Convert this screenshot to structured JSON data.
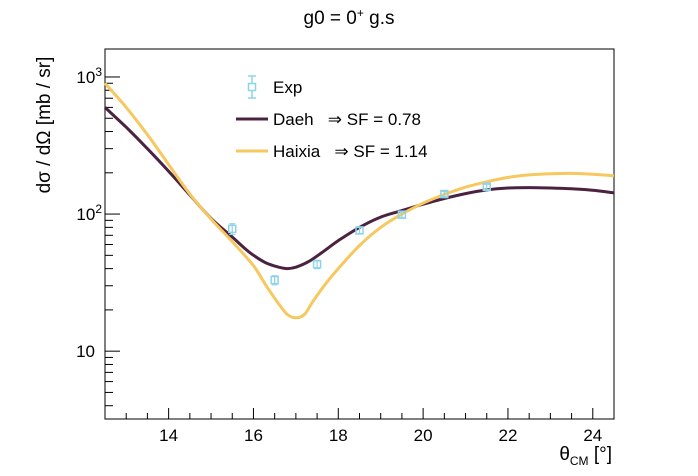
{
  "chart_data": {
    "type": "line",
    "title_base": "g0 = 0",
    "title_sup": "+",
    "title_suffix": " g.s",
    "xlabel_base": "θ",
    "xlabel_sub": "CM",
    "xlabel_unit": " [°]",
    "ylabel": "dσ / dΩ [mb / sr]",
    "xlim": [
      12.5,
      24.5
    ],
    "ylim": [
      3.2,
      1600
    ],
    "yscale": "log",
    "x_ticks": [
      14,
      16,
      18,
      20,
      22,
      24
    ],
    "x_tick_labels": [
      "14",
      "16",
      "18",
      "20",
      "22",
      "24"
    ],
    "y_ticks": [
      10,
      100,
      1000
    ],
    "y_tick_labels": [
      "10",
      "10",
      "10"
    ],
    "y_tick_exponents": [
      "",
      "2",
      "3"
    ],
    "legend_position": "top-center",
    "series": [
      {
        "name": "Exp",
        "kind": "points",
        "color": "#8fd3e8",
        "points": [
          {
            "x": 15.5,
            "y": 78,
            "err": 7
          },
          {
            "x": 16.5,
            "y": 33,
            "err": 2.5
          },
          {
            "x": 17.5,
            "y": 43,
            "err": 3
          },
          {
            "x": 18.5,
            "y": 76,
            "err": 4
          },
          {
            "x": 19.5,
            "y": 99,
            "err": 5
          },
          {
            "x": 20.5,
            "y": 140,
            "err": 6
          },
          {
            "x": 21.5,
            "y": 158,
            "err": 7
          }
        ]
      },
      {
        "name": "Daeh",
        "legend_label": "Daeh   ⇒ SF = 0.78",
        "kind": "line",
        "color": "#4b2340",
        "x": [
          12.5,
          13.0,
          13.5,
          14.0,
          14.5,
          15.0,
          15.5,
          15.8,
          16.0,
          16.3,
          16.6,
          16.8,
          17.0,
          17.3,
          17.6,
          18.0,
          18.5,
          19.0,
          19.5,
          20.0,
          20.5,
          21.0,
          21.5,
          22.0,
          22.5,
          23.0,
          23.5,
          24.0,
          24.5
        ],
        "y": [
          600,
          430,
          300,
          205,
          138,
          93,
          68,
          56,
          50,
          44,
          41,
          40,
          41,
          45,
          52,
          64,
          80,
          95,
          106,
          118,
          130,
          141,
          150,
          155,
          156,
          155,
          153,
          149,
          143
        ]
      },
      {
        "name": "Haixia",
        "legend_label": "Haixia   ⇒ SF = 1.14",
        "kind": "line",
        "color": "#f6c85f",
        "x": [
          12.5,
          13.0,
          13.5,
          14.0,
          14.5,
          15.0,
          15.5,
          16.0,
          16.3,
          16.6,
          16.8,
          17.0,
          17.2,
          17.4,
          17.7,
          18.0,
          18.5,
          19.0,
          19.5,
          20.0,
          20.5,
          21.0,
          21.5,
          22.0,
          22.5,
          23.0,
          23.5,
          24.0,
          24.5
        ],
        "y": [
          900,
          600,
          380,
          230,
          140,
          92,
          63,
          42,
          30,
          22,
          18.5,
          17.5,
          18.5,
          23,
          31,
          40,
          59,
          80,
          100,
          120,
          139,
          157,
          172,
          185,
          193,
          197,
          198,
          195,
          190
        ]
      }
    ]
  }
}
